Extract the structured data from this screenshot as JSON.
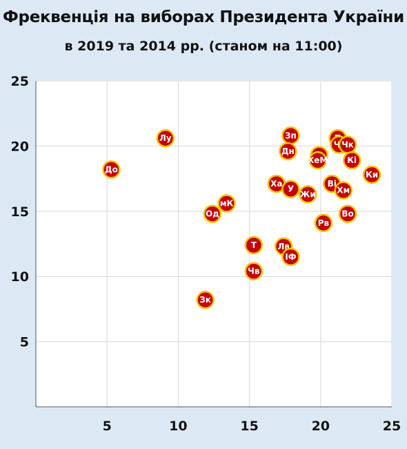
{
  "title": "Фреквенція на виборах Президента України",
  "subtitle": "в 2019 та 2014 рр. (станом на 11:00)",
  "colors": {
    "background": "#dce9f5",
    "plot_background": "#ffffff",
    "grid": "#e3e3e3",
    "marker_fill": "#c40000",
    "marker_outline": "#f5c400"
  },
  "chart_data": {
    "type": "scatter",
    "title": "Фреквенція на виборах Президента України",
    "subtitle": "в 2019 та 2014 рр. (станом на 11:00)",
    "xlabel": "",
    "ylabel": "",
    "xlim": [
      0,
      25
    ],
    "ylim": [
      0,
      25
    ],
    "xticks": [
      5,
      10,
      15,
      20,
      25
    ],
    "yticks": [
      5,
      10,
      15,
      20,
      25
    ],
    "grid": true,
    "points": [
      {
        "label": "До",
        "x": 5.3,
        "y": 18.2
      },
      {
        "label": "Лу",
        "x": 9.1,
        "y": 20.6
      },
      {
        "label": "Зп",
        "x": 17.9,
        "y": 20.8
      },
      {
        "label": "Дн",
        "x": 17.7,
        "y": 19.6
      },
      {
        "label": "П",
        "x": 21.2,
        "y": 20.6
      },
      {
        "label": "Чг",
        "x": 21.3,
        "y": 20.1
      },
      {
        "label": "Чк",
        "x": 21.9,
        "y": 20.1
      },
      {
        "label": "С",
        "x": 19.9,
        "y": 19.3
      },
      {
        "label": "ХеМ",
        "x": 19.8,
        "y": 18.9
      },
      {
        "label": "Кі",
        "x": 22.2,
        "y": 18.9
      },
      {
        "label": "Ки",
        "x": 23.6,
        "y": 17.8
      },
      {
        "label": "Ха",
        "x": 16.9,
        "y": 17.1
      },
      {
        "label": "У",
        "x": 17.9,
        "y": 16.7
      },
      {
        "label": "Жи",
        "x": 19.1,
        "y": 16.3
      },
      {
        "label": "Ві",
        "x": 20.8,
        "y": 17.1
      },
      {
        "label": "Хм",
        "x": 21.6,
        "y": 16.6
      },
      {
        "label": "Рв",
        "x": 20.2,
        "y": 14.1
      },
      {
        "label": "Во",
        "x": 21.9,
        "y": 14.8
      },
      {
        "label": "мК",
        "x": 13.4,
        "y": 15.6
      },
      {
        "label": "Од",
        "x": 12.4,
        "y": 14.8
      },
      {
        "label": "Т",
        "x": 15.3,
        "y": 12.4
      },
      {
        "label": "Лв",
        "x": 17.4,
        "y": 12.3
      },
      {
        "label": "ІФ",
        "x": 17.9,
        "y": 11.5
      },
      {
        "label": "Чв",
        "x": 15.3,
        "y": 10.4
      },
      {
        "label": "Зк",
        "x": 11.9,
        "y": 8.2
      }
    ]
  }
}
